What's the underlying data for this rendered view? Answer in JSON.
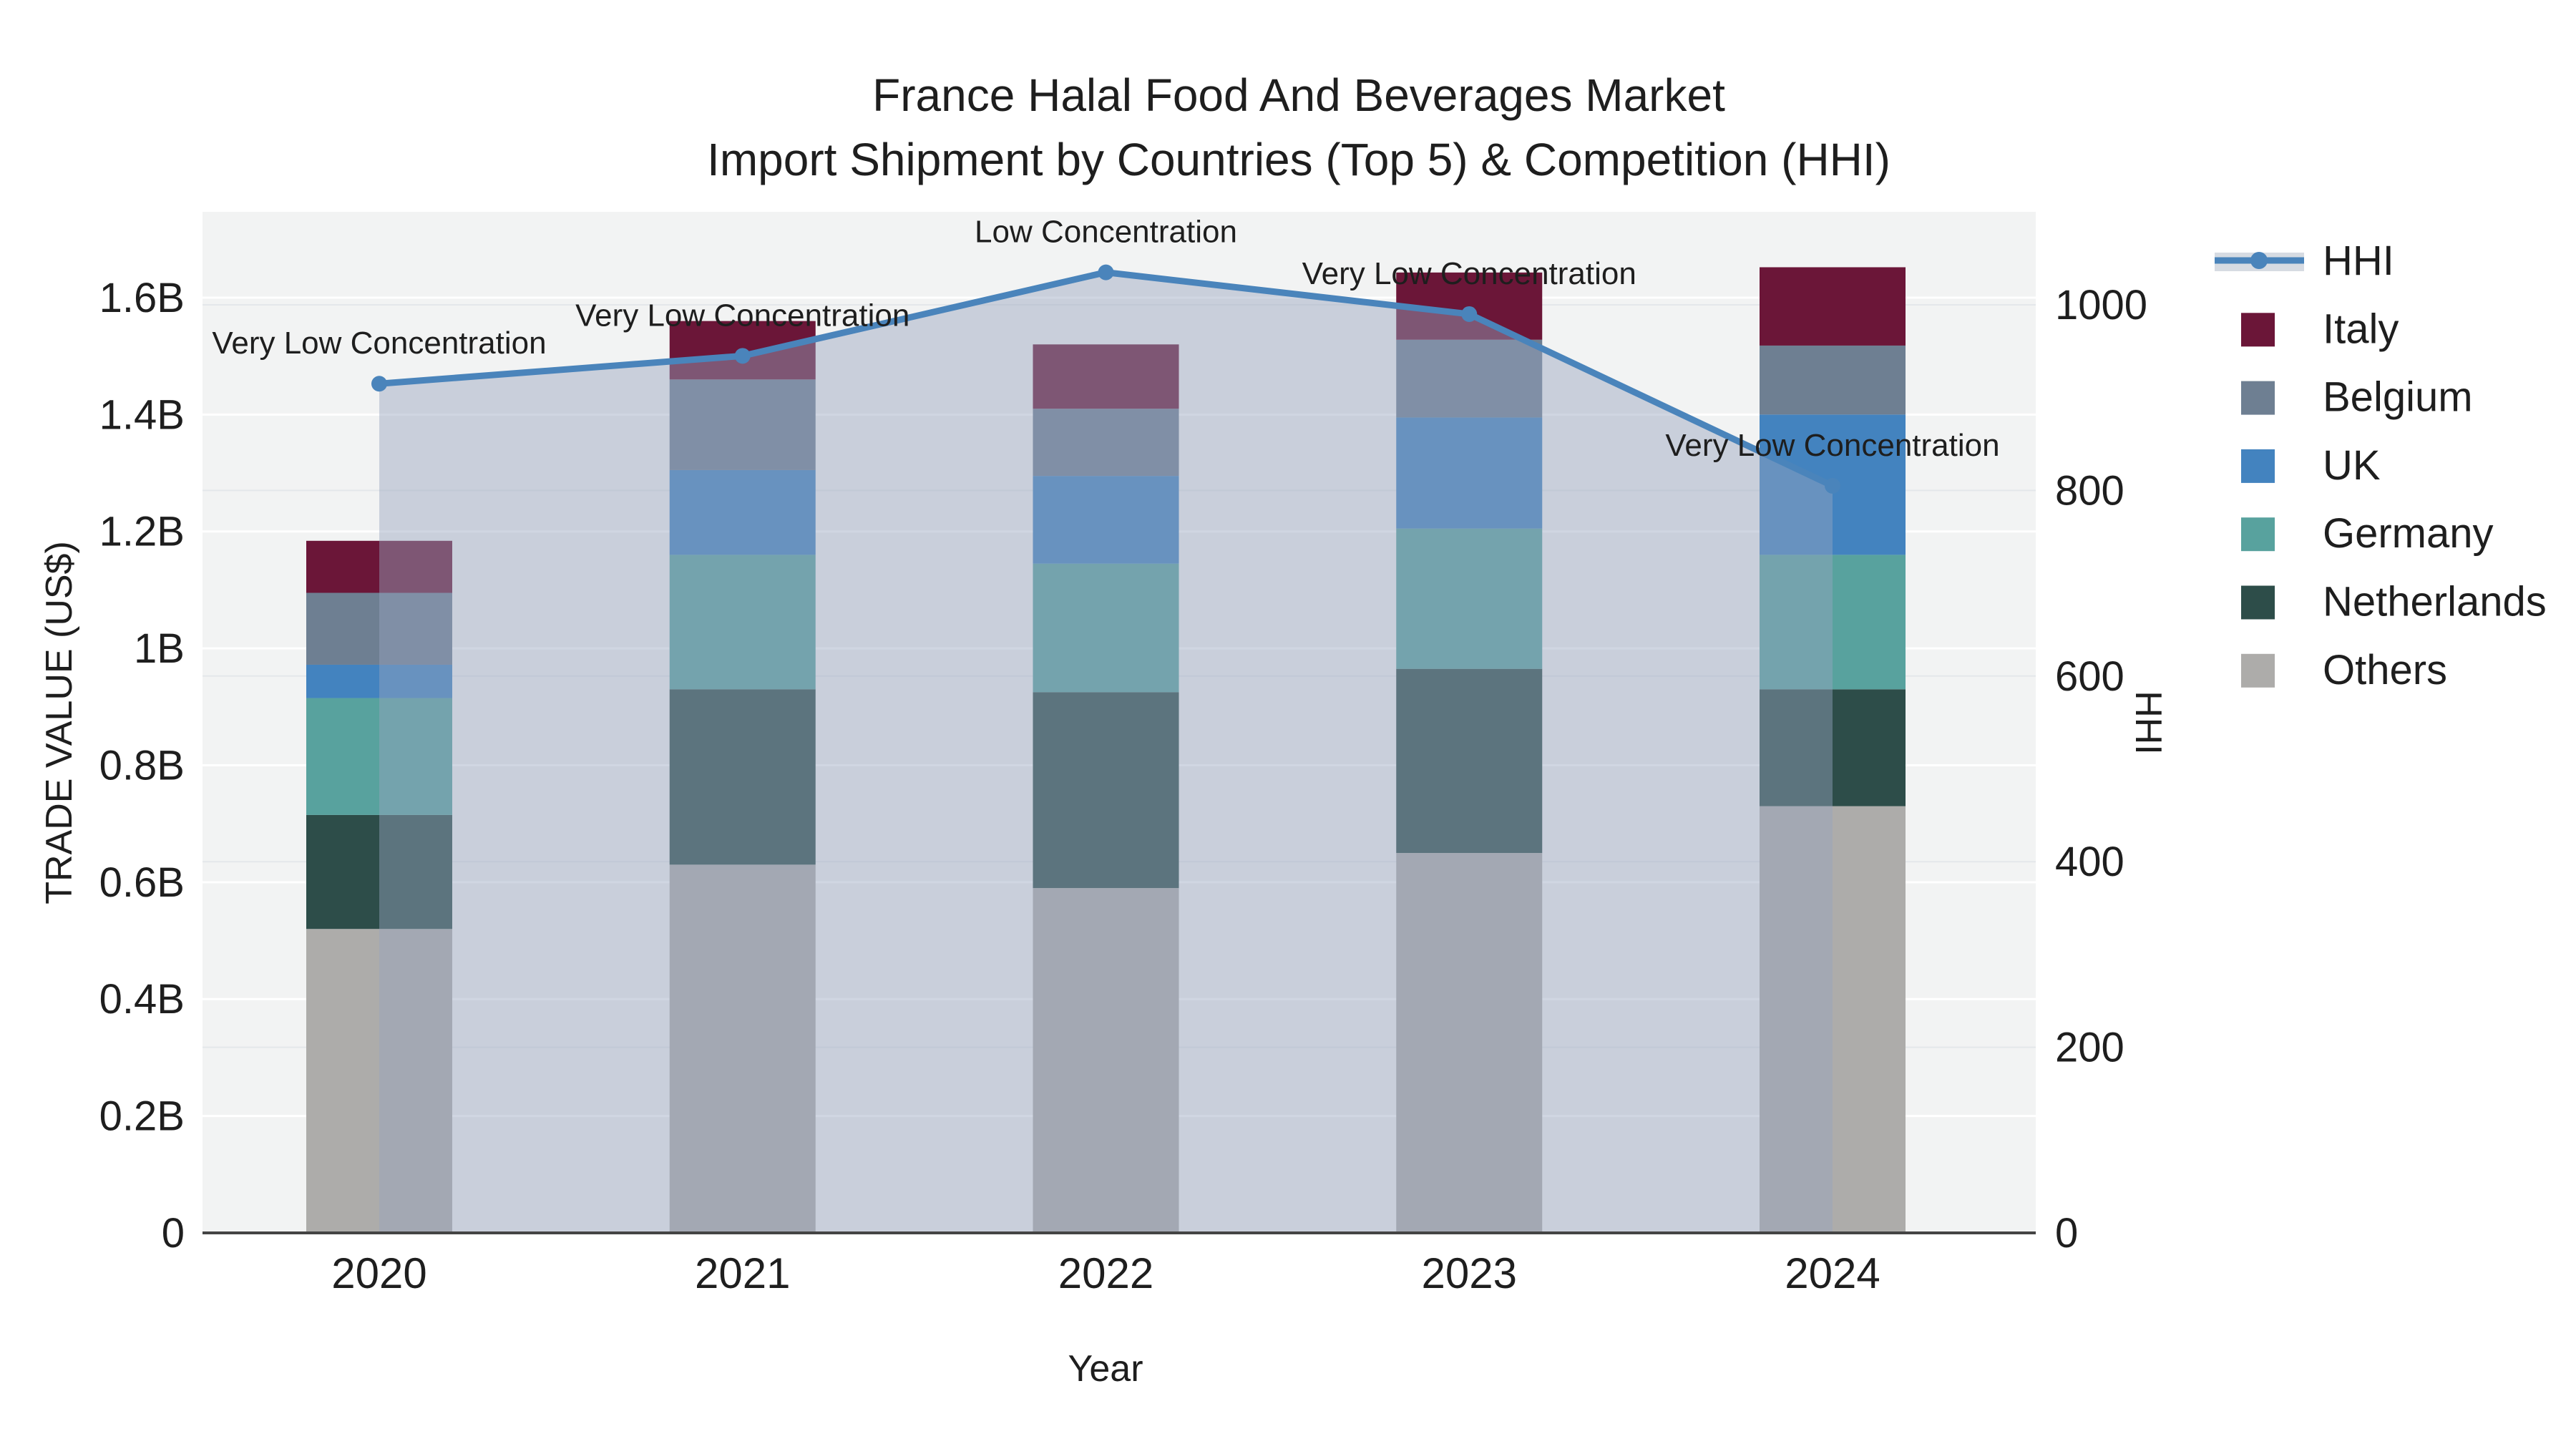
{
  "title": {
    "line1": "France Halal Food And Beverages Market",
    "line2": "Import Shipment by Countries (Top 5) & Competition (HHI)"
  },
  "axes": {
    "x": {
      "title": "Year",
      "tick_labels": [
        "2020",
        "2021",
        "2022",
        "2023",
        "2024"
      ]
    },
    "y_left": {
      "title": "TRADE VALUE (US$)",
      "tick_labels": [
        "0",
        "0.2B",
        "0.4B",
        "0.6B",
        "0.8B",
        "1B",
        "1.2B",
        "1.4B",
        "1.6B"
      ],
      "tick_values": [
        0,
        0.2,
        0.4,
        0.6,
        0.8,
        1.0,
        1.2,
        1.4,
        1.6
      ]
    },
    "y_right": {
      "title": "HHI",
      "tick_labels": [
        "0",
        "200",
        "400",
        "600",
        "800",
        "1000"
      ],
      "tick_values": [
        0,
        200,
        400,
        600,
        800,
        1000
      ]
    }
  },
  "legend": {
    "items": [
      {
        "label": "HHI",
        "type": "line",
        "color": "#4a84bb",
        "band_color": "#d6dbe2"
      },
      {
        "label": "Italy",
        "type": "swatch",
        "color": "#6b1638"
      },
      {
        "label": "Belgium",
        "type": "swatch",
        "color": "#6e7f92"
      },
      {
        "label": "UK",
        "type": "swatch",
        "color": "#4383bf"
      },
      {
        "label": "Germany",
        "type": "swatch",
        "color": "#58a29e"
      },
      {
        "label": "Netherlands",
        "type": "swatch",
        "color": "#2d4d49"
      },
      {
        "label": "Others",
        "type": "swatch",
        "color": "#adacaa"
      }
    ]
  },
  "chart_data": {
    "type": [
      "bar",
      "line"
    ],
    "bar_mode": "stacked",
    "categories": [
      "2020",
      "2021",
      "2022",
      "2023",
      "2024"
    ],
    "bar_value_unit": "billion US$ (trade value)",
    "series": [
      {
        "name": "Others",
        "color": "#adacaa",
        "values": [
          0.52,
          0.63,
          0.59,
          0.65,
          0.73
        ]
      },
      {
        "name": "Netherlands",
        "color": "#2d4d49",
        "values": [
          0.195,
          0.3,
          0.335,
          0.315,
          0.2
        ]
      },
      {
        "name": "Germany",
        "color": "#58a29e",
        "values": [
          0.2,
          0.23,
          0.22,
          0.24,
          0.23
        ]
      },
      {
        "name": "UK",
        "color": "#4383bf",
        "values": [
          0.057,
          0.145,
          0.15,
          0.19,
          0.24
        ]
      },
      {
        "name": "Belgium",
        "color": "#6e7f92",
        "values": [
          0.123,
          0.155,
          0.115,
          0.133,
          0.118
        ]
      },
      {
        "name": "Italy",
        "color": "#6b1638",
        "values": [
          0.089,
          0.1,
          0.11,
          0.115,
          0.134
        ]
      }
    ],
    "bar_totals": [
      1.18,
      1.56,
      1.52,
      1.64,
      1.66
    ],
    "line_series": {
      "name": "HHI",
      "values": [
        915,
        945,
        1035,
        990,
        805
      ],
      "color": "#4a84bb",
      "area_fill_color": "#96a5be",
      "area_fill_opacity": 0.45
    },
    "annotations": [
      {
        "x": "2020",
        "text": "Very Low Concentration"
      },
      {
        "x": "2021",
        "text": "Very Low Concentration"
      },
      {
        "x": "2022",
        "text": "Low Concentration"
      },
      {
        "x": "2023",
        "text": "Very Low Concentration"
      },
      {
        "x": "2024",
        "text": "Very Low Concentration"
      }
    ],
    "ylim_left": [
      0,
      1.75
    ],
    "ylim_right": [
      0,
      1100
    ],
    "grid": true,
    "legend_position": "right"
  },
  "colors": {
    "plot_background": "#f2f3f3",
    "grid_left": "#ffffff",
    "grid_right": "#e4e7ea",
    "axis_line": "#444444",
    "text": "#1e1e1e"
  }
}
